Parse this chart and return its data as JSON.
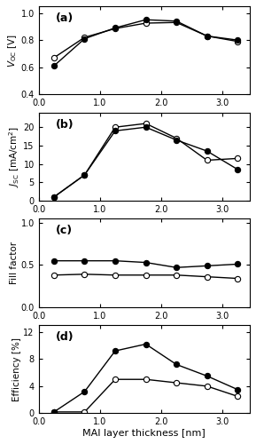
{
  "x": [
    0.25,
    0.75,
    1.25,
    1.75,
    2.25,
    2.75,
    3.25
  ],
  "voc_solid": [
    0.61,
    0.81,
    0.89,
    0.95,
    0.94,
    0.83,
    0.8
  ],
  "voc_open": [
    0.67,
    0.82,
    0.885,
    0.925,
    0.93,
    0.83,
    0.79
  ],
  "jsc_solid": [
    1.0,
    7.0,
    19.0,
    20.0,
    16.5,
    13.5,
    8.5
  ],
  "jsc_open": [
    1.0,
    7.0,
    20.0,
    21.0,
    17.0,
    11.0,
    11.5
  ],
  "ff_solid": [
    0.55,
    0.55,
    0.55,
    0.53,
    0.47,
    0.49,
    0.51
  ],
  "ff_open": [
    0.38,
    0.39,
    0.38,
    0.38,
    0.38,
    0.36,
    0.34
  ],
  "eff_solid": [
    0.2,
    3.2,
    9.2,
    10.2,
    7.2,
    5.5,
    3.5
  ],
  "eff_open": [
    0.2,
    0.2,
    5.0,
    5.0,
    4.5,
    4.0,
    2.5
  ],
  "ylim_voc": [
    0.4,
    1.05
  ],
  "ylim_jsc": [
    0.0,
    24.0
  ],
  "ylim_ff": [
    0.0,
    1.05
  ],
  "ylim_eff": [
    0.0,
    13.0
  ],
  "yticks_voc": [
    0.4,
    0.6,
    0.8,
    1.0
  ],
  "yticks_jsc": [
    0,
    5,
    10,
    15,
    20
  ],
  "yticks_ff": [
    0.0,
    0.5,
    1.0
  ],
  "yticks_eff": [
    0,
    4,
    8,
    12
  ],
  "xlim": [
    0.05,
    3.45
  ],
  "xticks": [
    0.0,
    1.0,
    2.0,
    3.0
  ],
  "xticklabels": [
    "0.0",
    "1.0",
    "2.0",
    "3.0"
  ],
  "xlabel": "MAI layer thickness [nm]",
  "ylabel_a": "$V_{\\mathrm{OC}}$ [V]",
  "ylabel_b": "$J_{\\mathrm{SC}}$ [mA/cm$^2$]",
  "ylabel_c": "Fill factor",
  "ylabel_d": "Efficiency [%]",
  "panel_labels": [
    "(a)",
    "(b)",
    "(c)",
    "(d)"
  ],
  "markersize": 4.5,
  "linewidth": 1.0,
  "color": "#000000",
  "bg_color": "#ffffff"
}
